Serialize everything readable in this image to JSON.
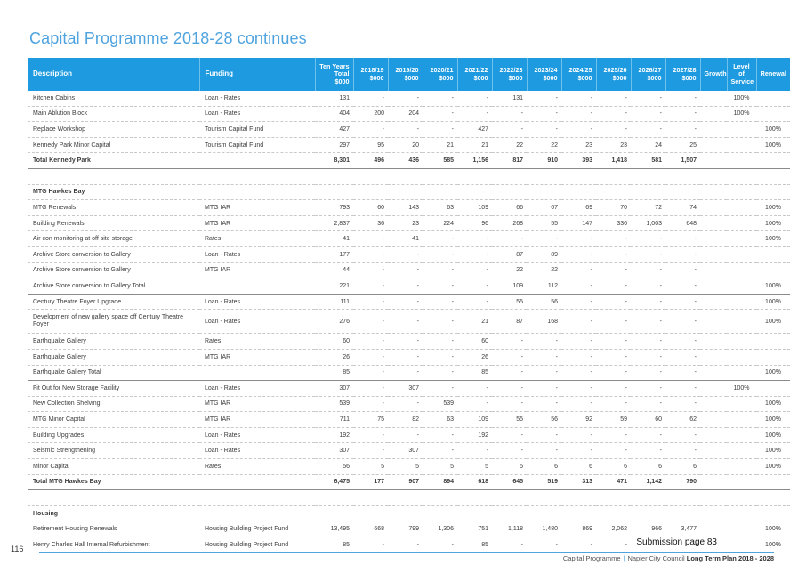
{
  "page": {
    "title": "Capital Programme 2018-28 continues",
    "submission": "Submission page 83",
    "page_number": "116",
    "footer": {
      "section": "Capital Programme",
      "org": "Napier City Council",
      "plan": "Long Term Plan 2018 - 2028"
    }
  },
  "table": {
    "headers": {
      "description": "Description",
      "funding": "Funding",
      "total": "Ten Years Total $000",
      "y2018": "2018/19 $000",
      "y2019": "2019/20 $000",
      "y2020": "2020/21 $000",
      "y2021": "2021/22 $000",
      "y2022": "2022/23 $000",
      "y2023": "2023/24 $000",
      "y2024": "2024/25 $000",
      "y2025": "2025/26 $000",
      "y2026": "2026/27 $000",
      "y2027": "2027/28 $000",
      "growth": "Growth",
      "los": "Level of Service",
      "renewal": "Renewal"
    },
    "rows": [
      {
        "d": "Kitchen Cabins",
        "f": "Loan - Rates",
        "t": "131",
        "v": [
          "-",
          "-",
          "-",
          "-",
          "131",
          "-",
          "-",
          "-",
          "-",
          "-"
        ],
        "g": "",
        "l": "100%",
        "r": ""
      },
      {
        "d": "Main Ablution Block",
        "f": "Loan - Rates",
        "t": "404",
        "v": [
          "200",
          "204",
          "-",
          "-",
          "-",
          "-",
          "-",
          "-",
          "-",
          "-"
        ],
        "g": "",
        "l": "100%",
        "r": ""
      },
      {
        "d": "Replace Workshop",
        "f": "Tourism Capital Fund",
        "t": "427",
        "v": [
          "-",
          "-",
          "-",
          "427",
          "-",
          "-",
          "-",
          "-",
          "-",
          "-"
        ],
        "g": "",
        "l": "",
        "r": "100%"
      },
      {
        "d": "Kennedy Park Minor Capital",
        "f": "Tourism Capital Fund",
        "t": "297",
        "v": [
          "95",
          "20",
          "21",
          "21",
          "22",
          "22",
          "23",
          "23",
          "24",
          "25"
        ],
        "g": "",
        "l": "",
        "r": "100%"
      },
      {
        "d": "Total Kennedy Park",
        "f": "",
        "t": "8,301",
        "v": [
          "496",
          "436",
          "585",
          "1,156",
          "817",
          "910",
          "393",
          "1,418",
          "581",
          "1,507"
        ],
        "g": "",
        "l": "",
        "r": ""
      },
      {
        "d": "",
        "f": "",
        "t": "",
        "v": [
          "",
          "",
          "",
          "",
          "",
          "",
          "",
          "",
          "",
          ""
        ],
        "g": "",
        "l": "",
        "r": ""
      },
      {
        "d": "MTG Hawkes Bay",
        "f": "",
        "t": "",
        "v": [
          "",
          "",
          "",
          "",
          "",
          "",
          "",
          "",
          "",
          ""
        ],
        "g": "",
        "l": "",
        "r": ""
      },
      {
        "d": "MTG Renewals",
        "f": "MTG IAR",
        "t": "793",
        "v": [
          "60",
          "143",
          "63",
          "109",
          "66",
          "67",
          "69",
          "70",
          "72",
          "74"
        ],
        "g": "",
        "l": "",
        "r": "100%"
      },
      {
        "d": "Building Renewals",
        "f": "MTG IAR",
        "t": "2,837",
        "v": [
          "36",
          "23",
          "224",
          "96",
          "268",
          "55",
          "147",
          "336",
          "1,003",
          "648"
        ],
        "g": "",
        "l": "",
        "r": "100%"
      },
      {
        "d": "Air con monitoring at off site storage",
        "f": "Rates",
        "t": "41",
        "v": [
          "-",
          "41",
          "-",
          "-",
          "-",
          "-",
          "-",
          "-",
          "-",
          "-"
        ],
        "g": "",
        "l": "",
        "r": "100%"
      },
      {
        "d": "Archive Store conversion to Gallery",
        "f": "Loan - Rates",
        "t": "177",
        "v": [
          "-",
          "-",
          "-",
          "-",
          "87",
          "89",
          "-",
          "-",
          "-",
          "-"
        ],
        "g": "",
        "l": "",
        "r": ""
      },
      {
        "d": "Archive Store conversion to Gallery",
        "f": "MTG IAR",
        "t": "44",
        "v": [
          "-",
          "-",
          "-",
          "-",
          "22",
          "22",
          "-",
          "-",
          "-",
          "-"
        ],
        "g": "",
        "l": "",
        "r": ""
      },
      {
        "d": "Archive Store conversion to Gallery Total",
        "f": "",
        "t": "221",
        "v": [
          "-",
          "-",
          "-",
          "-",
          "109",
          "112",
          "-",
          "-",
          "-",
          "-"
        ],
        "g": "",
        "l": "",
        "r": "100%"
      },
      {
        "d": "Century Theatre Foyer Upgrade",
        "f": "Loan - Rates",
        "t": "111",
        "v": [
          "-",
          "-",
          "-",
          "-",
          "55",
          "56",
          "-",
          "-",
          "-",
          "-"
        ],
        "g": "",
        "l": "",
        "r": "100%"
      },
      {
        "d": "Development of new gallery space off Century Theatre Foyer",
        "f": "Loan - Rates",
        "t": "276",
        "v": [
          "-",
          "-",
          "-",
          "21",
          "87",
          "168",
          "-",
          "-",
          "-",
          "-"
        ],
        "g": "",
        "l": "",
        "r": "100%"
      },
      {
        "d": "Earthquake Gallery",
        "f": "Rates",
        "t": "60",
        "v": [
          "-",
          "-",
          "-",
          "60",
          "-",
          "-",
          "-",
          "-",
          "-",
          "-"
        ],
        "g": "",
        "l": "",
        "r": ""
      },
      {
        "d": "Earthquake Gallery",
        "f": "MTG IAR",
        "t": "26",
        "v": [
          "-",
          "-",
          "-",
          "26",
          "-",
          "-",
          "-",
          "-",
          "-",
          "-"
        ],
        "g": "",
        "l": "",
        "r": ""
      },
      {
        "d": "Earthquake Gallery Total",
        "f": "",
        "t": "85",
        "v": [
          "-",
          "-",
          "-",
          "85",
          "-",
          "-",
          "-",
          "-",
          "-",
          "-"
        ],
        "g": "",
        "l": "",
        "r": "100%"
      },
      {
        "d": "Fit Out for New Storage Facility",
        "f": "Loan - Rates",
        "t": "307",
        "v": [
          "-",
          "307",
          "-",
          "-",
          "-",
          "-",
          "-",
          "-",
          "-",
          "-"
        ],
        "g": "",
        "l": "100%",
        "r": ""
      },
      {
        "d": "New Collection Shelving",
        "f": "MTG IAR",
        "t": "539",
        "v": [
          "-",
          "-",
          "539",
          "-",
          "-",
          "-",
          "-",
          "-",
          "-",
          "-"
        ],
        "g": "",
        "l": "",
        "r": "100%"
      },
      {
        "d": "MTG Minor Capital",
        "f": "MTG IAR",
        "t": "711",
        "v": [
          "75",
          "82",
          "63",
          "109",
          "55",
          "56",
          "92",
          "59",
          "60",
          "62"
        ],
        "g": "",
        "l": "",
        "r": "100%"
      },
      {
        "d": "Building Upgrades",
        "f": "Loan - Rates",
        "t": "192",
        "v": [
          "-",
          "-",
          "-",
          "192",
          "-",
          "-",
          "-",
          "-",
          "-",
          "-"
        ],
        "g": "",
        "l": "",
        "r": "100%"
      },
      {
        "d": "Seismic Strengthening",
        "f": "Loan - Rates",
        "t": "307",
        "v": [
          "-",
          "307",
          "-",
          "-",
          "-",
          "-",
          "-",
          "-",
          "-",
          "-"
        ],
        "g": "",
        "l": "",
        "r": "100%"
      },
      {
        "d": "Minor Capital",
        "f": "Rates",
        "t": "56",
        "v": [
          "5",
          "5",
          "5",
          "5",
          "5",
          "6",
          "6",
          "6",
          "6",
          "6"
        ],
        "g": "",
        "l": "",
        "r": "100%"
      },
      {
        "d": "Total MTG Hawkes Bay",
        "f": "",
        "t": "6,475",
        "v": [
          "177",
          "907",
          "894",
          "618",
          "645",
          "519",
          "313",
          "471",
          "1,142",
          "790"
        ],
        "g": "",
        "l": "",
        "r": ""
      },
      {
        "d": "",
        "f": "",
        "t": "",
        "v": [
          "",
          "",
          "",
          "",
          "",
          "",
          "",
          "",
          "",
          ""
        ],
        "g": "",
        "l": "",
        "r": ""
      },
      {
        "d": "Housing",
        "f": "",
        "t": "",
        "v": [
          "",
          "",
          "",
          "",
          "",
          "",
          "",
          "",
          "",
          ""
        ],
        "g": "",
        "l": "",
        "r": ""
      },
      {
        "d": "Retirement Housing Renewals",
        "f": "Housing Building Project Fund",
        "t": "13,495",
        "v": [
          "668",
          "799",
          "1,306",
          "751",
          "1,118",
          "1,480",
          "869",
          "2,062",
          "966",
          "3,477"
        ],
        "g": "",
        "l": "",
        "r": "100%"
      },
      {
        "d": "Henry Charles Hall Internal Refurbishment",
        "f": "Housing Building Project Fund",
        "t": "85",
        "v": [
          "-",
          "-",
          "-",
          "85",
          "-",
          "-",
          "-",
          "-",
          "-",
          "-"
        ],
        "g": "",
        "l": "",
        "r": "100%"
      }
    ]
  }
}
